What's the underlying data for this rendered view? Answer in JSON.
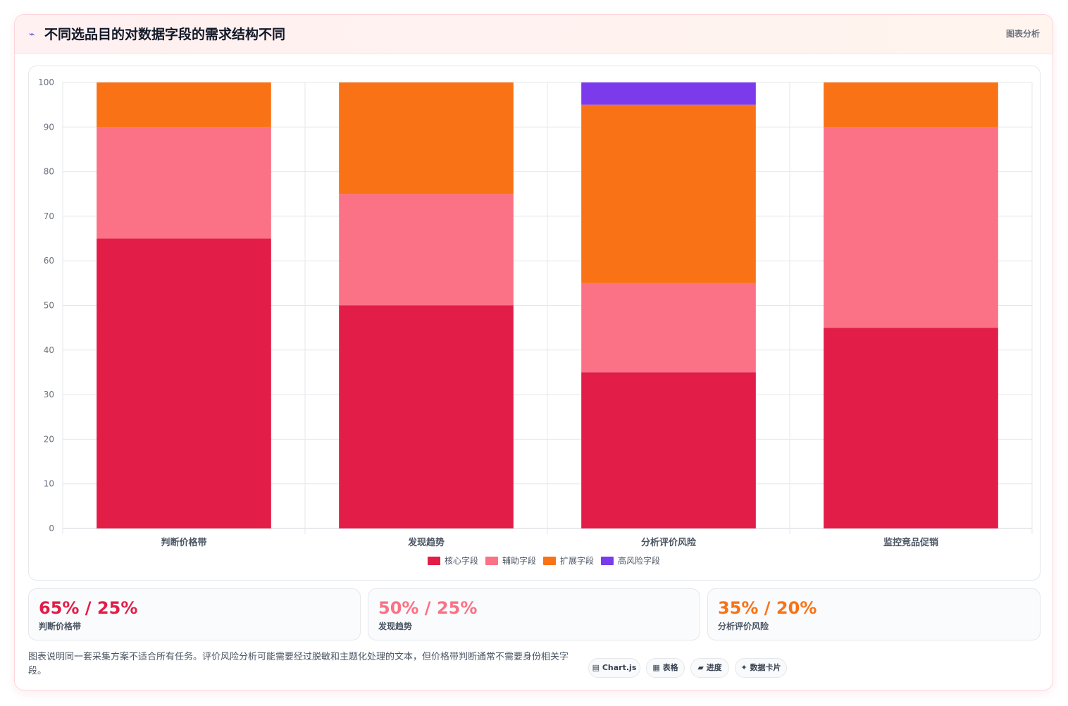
{
  "header": {
    "icon": "⌁",
    "title": "不同选品目的对数据字段的需求结构不同",
    "tag": "图表分析"
  },
  "chart_data": {
    "type": "bar",
    "stacked": true,
    "categories": [
      "判断价格带",
      "发现趋势",
      "分析评价风险",
      "监控竞品促销"
    ],
    "series": [
      {
        "name": "核心字段",
        "color": "#e11d48",
        "values": [
          65,
          50,
          35,
          45
        ]
      },
      {
        "name": "辅助字段",
        "color": "#fb7185",
        "values": [
          25,
          25,
          20,
          45
        ]
      },
      {
        "name": "扩展字段",
        "color": "#f97316",
        "values": [
          10,
          25,
          40,
          10
        ]
      },
      {
        "name": "高风险字段",
        "color": "#7c3aed",
        "values": [
          0,
          0,
          5,
          0
        ]
      }
    ],
    "ylim": [
      0,
      100
    ],
    "yticks": [
      0,
      10,
      20,
      30,
      40,
      50,
      60,
      70,
      80,
      90,
      100
    ],
    "grid": true,
    "legend": "bottom"
  },
  "stats": [
    {
      "value": "65% / 25%",
      "label": "判断价格带",
      "color": "#e11d48"
    },
    {
      "value": "50% / 25%",
      "label": "发现趋势",
      "color": "#fb7185"
    },
    {
      "value": "35% / 20%",
      "label": "分析评价风险",
      "color": "#f97316"
    }
  ],
  "note": "图表说明同一套采集方案不适合所有任务。评价风险分析可能需要经过脱敏和主题化处理的文本，但价格带判断通常不需要身份相关字段。",
  "tags": [
    {
      "icon": "▤",
      "label": "Chart.js"
    },
    {
      "icon": "▦",
      "label": "表格"
    },
    {
      "icon": "▰",
      "label": "进度"
    },
    {
      "icon": "✦",
      "label": "数据卡片"
    }
  ]
}
